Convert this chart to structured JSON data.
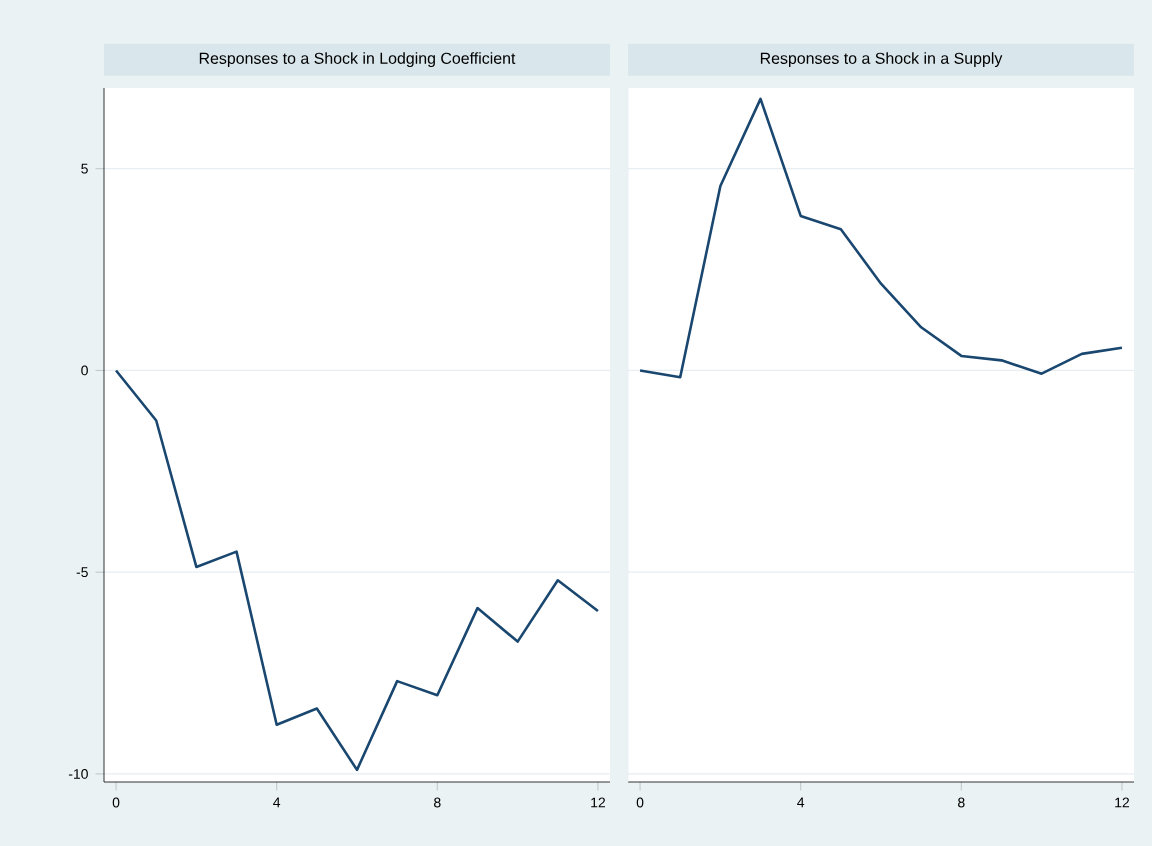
{
  "chart_data": [
    {
      "type": "line",
      "title": "Responses to a Shock in Lodging Coefficient",
      "x": [
        0,
        1,
        2,
        3,
        4,
        5,
        6,
        7,
        8,
        9,
        10,
        11,
        12
      ],
      "series": [
        {
          "color": "#1a476f",
          "values": [
            0,
            -1.24,
            -4.87,
            -4.49,
            -8.78,
            -8.38,
            -9.9,
            -7.7,
            -8.05,
            -5.89,
            -6.72,
            -5.2,
            -5.96
          ]
        }
      ],
      "xlim": [
        -0.3,
        12.3
      ],
      "ylim": [
        -10.2,
        7
      ],
      "xticks": [
        0,
        4,
        8,
        12
      ],
      "yticks": [
        -10,
        -5,
        0,
        5
      ],
      "grid": "y"
    },
    {
      "type": "line",
      "title": "Responses to a Shock in a Supply",
      "x": [
        0,
        1,
        2,
        3,
        4,
        5,
        6,
        7,
        8,
        9,
        10,
        11,
        12
      ],
      "series": [
        {
          "color": "#1a476f",
          "values": [
            0,
            -0.17,
            4.57,
            6.73,
            3.83,
            3.5,
            2.15,
            1.07,
            0.36,
            0.25,
            -0.08,
            0.41,
            0.56
          ]
        }
      ],
      "xlim": [
        -0.3,
        12.3
      ],
      "ylim": [
        -10.2,
        7
      ],
      "xticks": [
        0,
        4,
        8,
        12
      ],
      "yticks": [
        -10,
        -5,
        0,
        5
      ],
      "grid": "y",
      "tick_labels": "x"
    }
  ]
}
